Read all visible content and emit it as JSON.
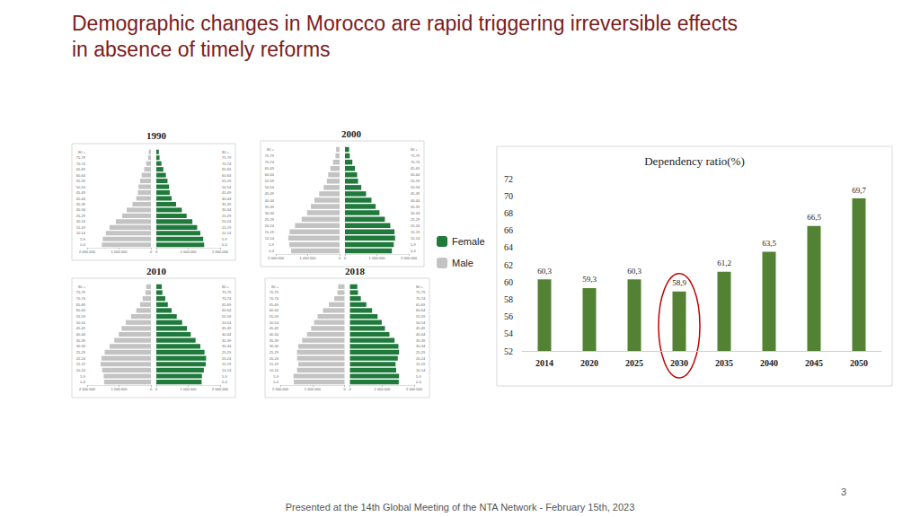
{
  "slide": {
    "title": [
      "Demographic changes in Morocco are rapid triggering irreversible effects",
      "in absence of timely reforms"
    ],
    "footer": "Presented at the 14th Global Meeting of the NTA Network - February 15th, 2023",
    "page_number": 3
  },
  "chart_data": [
    {
      "type": "pyramid",
      "title": "1990",
      "categories": [
        "0-4",
        "5-9",
        "10-14",
        "15-19",
        "20-24",
        "25-29",
        "30-34",
        "35-39",
        "40-44",
        "45-49",
        "50-54",
        "55-59",
        "60-64",
        "65-69",
        "70-74",
        "75-79",
        "80 +"
      ],
      "series": [
        {
          "name": "Female",
          "color": "#1f7a3c",
          "values": [
            1500000,
            1470000,
            1380000,
            1280000,
            1130000,
            950000,
            800000,
            620000,
            480000,
            420000,
            400000,
            350000,
            300000,
            220000,
            160000,
            100000,
            80000
          ]
        },
        {
          "name": "Male",
          "color": "#c3c3c3",
          "values": [
            1540000,
            1510000,
            1410000,
            1300000,
            1100000,
            900000,
            760000,
            580000,
            460000,
            410000,
            390000,
            340000,
            290000,
            210000,
            150000,
            90000,
            70000
          ]
        }
      ],
      "xlim": [
        0,
        2000000
      ],
      "xticks": [
        0,
        {
          "value": 1000000,
          "label": "1 000 000"
        },
        {
          "value": 2000000,
          "label": "2 000 000"
        }
      ],
      "grid": false
    },
    {
      "type": "pyramid",
      "title": "2000",
      "categories": [
        "0-4",
        "5-9",
        "10-14",
        "15-19",
        "20-24",
        "25-29",
        "30-34",
        "35-39",
        "40-44",
        "45-49",
        "50-54",
        "55-59",
        "60-64",
        "65-69",
        "70-74",
        "75-79",
        "80 +"
      ],
      "series": [
        {
          "name": "Female",
          "color": "#1f7a3c",
          "values": [
            1470000,
            1530000,
            1570000,
            1550000,
            1420000,
            1250000,
            1080000,
            960000,
            830000,
            660000,
            510000,
            410000,
            380000,
            310000,
            230000,
            150000,
            130000
          ]
        },
        {
          "name": "Male",
          "color": "#c3c3c3",
          "values": [
            1520000,
            1580000,
            1610000,
            1570000,
            1400000,
            1190000,
            1020000,
            900000,
            790000,
            640000,
            500000,
            400000,
            360000,
            290000,
            210000,
            130000,
            110000
          ]
        }
      ],
      "xlim": [
        0,
        2000000
      ],
      "xticks": [
        0,
        {
          "value": 1000000,
          "label": "1 000 000"
        },
        {
          "value": 2000000,
          "label": "2 000 000"
        }
      ],
      "grid": false
    },
    {
      "type": "pyramid",
      "title": "2010",
      "categories": [
        "0-4",
        "5-9",
        "10-14",
        "15-19",
        "20-24",
        "25-29",
        "30-34",
        "35-39",
        "40-44",
        "45-49",
        "50-54",
        "55-59",
        "60-64",
        "65-69",
        "70-74",
        "75-79",
        "80 +"
      ],
      "series": [
        {
          "name": "Female",
          "color": "#1f7a3c",
          "values": [
            1420000,
            1430000,
            1490000,
            1550000,
            1560000,
            1510000,
            1380000,
            1230000,
            1080000,
            960000,
            810000,
            640000,
            480000,
            360000,
            280000,
            190000,
            170000
          ]
        },
        {
          "name": "Male",
          "color": "#c3c3c3",
          "values": [
            1470000,
            1480000,
            1530000,
            1580000,
            1550000,
            1450000,
            1300000,
            1150000,
            1010000,
            920000,
            790000,
            620000,
            460000,
            340000,
            260000,
            170000,
            150000
          ]
        }
      ],
      "xlim": [
        0,
        2000000
      ],
      "xticks": [
        0,
        {
          "value": 1000000,
          "label": "1 000 000"
        },
        {
          "value": 2000000,
          "label": "2 000 000"
        }
      ],
      "grid": false
    },
    {
      "type": "pyramid",
      "title": "2018",
      "categories": [
        "0-4",
        "5-9",
        "10-14",
        "15-19",
        "20-24",
        "25-29",
        "30-34",
        "35-39",
        "40-44",
        "45-49",
        "50-54",
        "55-59",
        "60-64",
        "65-69",
        "70-74",
        "75-79",
        "80 +"
      ],
      "series": [
        {
          "name": "Female",
          "color": "#1f7a3c",
          "values": [
            1520000,
            1530000,
            1440000,
            1420000,
            1490000,
            1530000,
            1510000,
            1390000,
            1230000,
            1090000,
            990000,
            860000,
            690000,
            510000,
            340000,
            250000,
            230000
          ]
        },
        {
          "name": "Male",
          "color": "#c3c3c3",
          "values": [
            1580000,
            1590000,
            1480000,
            1440000,
            1480000,
            1480000,
            1440000,
            1320000,
            1170000,
            1040000,
            950000,
            840000,
            670000,
            490000,
            320000,
            220000,
            200000
          ]
        }
      ],
      "xlim": [
        0,
        2000000
      ],
      "xticks": [
        0,
        {
          "value": 1000000,
          "label": "1 000 000"
        },
        {
          "value": 2000000,
          "label": "2 000 000"
        }
      ],
      "grid": false
    },
    {
      "type": "bar",
      "title": "Dependency ratio(%)",
      "categories": [
        "2014",
        "2020",
        "2025",
        "2030",
        "2035",
        "2040",
        "2045",
        "2050"
      ],
      "values": [
        60.3,
        59.3,
        60.3,
        58.9,
        61.2,
        63.5,
        66.5,
        69.7
      ],
      "value_labels": [
        "60,3",
        "59,3",
        "60,3",
        "58,9",
        "61,2",
        "63,5",
        "66,5",
        "69,7"
      ],
      "color": "#548235",
      "ylim": [
        52,
        72
      ],
      "yticks": [
        52,
        54,
        56,
        58,
        60,
        62,
        64,
        66,
        68,
        70,
        72
      ],
      "grid": false,
      "data_labels": true
    }
  ]
}
